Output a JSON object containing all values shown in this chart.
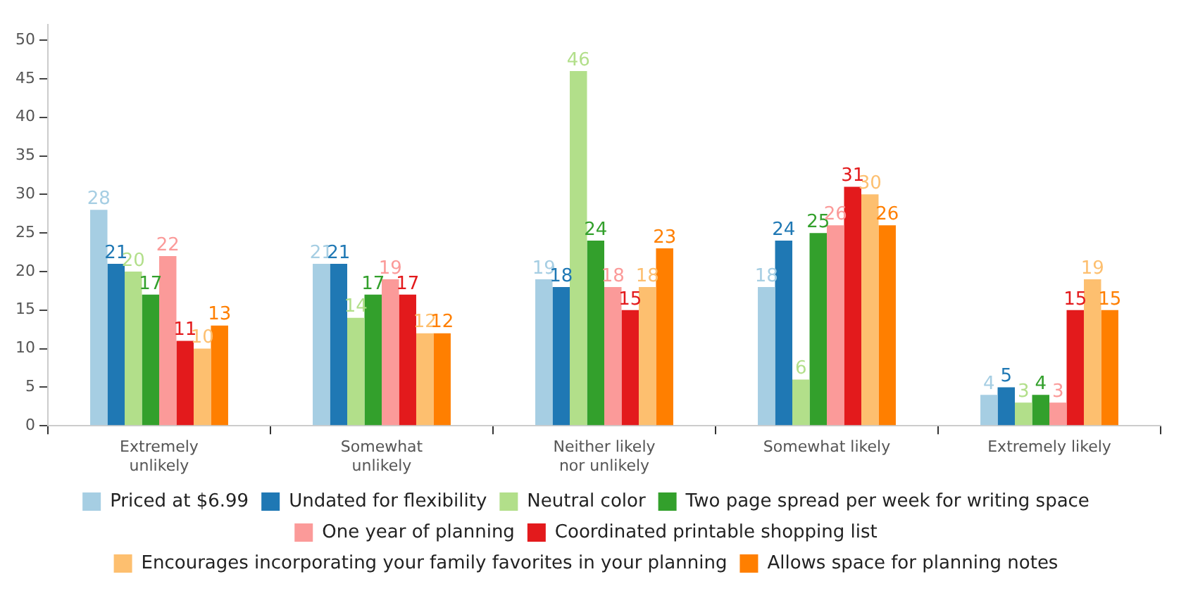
{
  "chart_data": {
    "type": "bar",
    "categories": [
      "Extremely unlikely",
      "Somewhat unlikely",
      "Neither likely nor unlikely",
      "Somewhat likely",
      "Extremely likely"
    ],
    "series": [
      {
        "name": "Priced at $6.99",
        "color": "#a6cee3",
        "values": [
          28,
          21,
          19,
          18,
          4
        ]
      },
      {
        "name": "Undated for flexibility",
        "color": "#1f78b4",
        "values": [
          21,
          21,
          18,
          24,
          5
        ]
      },
      {
        "name": "Neutral color",
        "color": "#b2df8a",
        "values": [
          20,
          14,
          46,
          6,
          3
        ]
      },
      {
        "name": "Two page spread per week for writing space",
        "color": "#33a02c",
        "values": [
          17,
          17,
          24,
          25,
          4
        ]
      },
      {
        "name": "One year of planning",
        "color": "#fb9a99",
        "values": [
          22,
          19,
          18,
          26,
          3
        ]
      },
      {
        "name": "Coordinated printable shopping list",
        "color": "#e31a1c",
        "values": [
          11,
          17,
          15,
          31,
          15
        ]
      },
      {
        "name": "Encourages incorporating your family favorites in your planning",
        "color": "#fdbf6f",
        "values": [
          10,
          12,
          18,
          30,
          19
        ]
      },
      {
        "name": "Allows space for planning notes",
        "color": "#ff7f00",
        "values": [
          13,
          12,
          23,
          26,
          15
        ]
      }
    ],
    "ylim": [
      0,
      52
    ],
    "yticks": [
      0,
      5,
      10,
      15,
      20,
      25,
      30,
      35,
      40,
      45,
      50
    ],
    "grid": false,
    "legend": "bottom",
    "data_labels": true
  }
}
